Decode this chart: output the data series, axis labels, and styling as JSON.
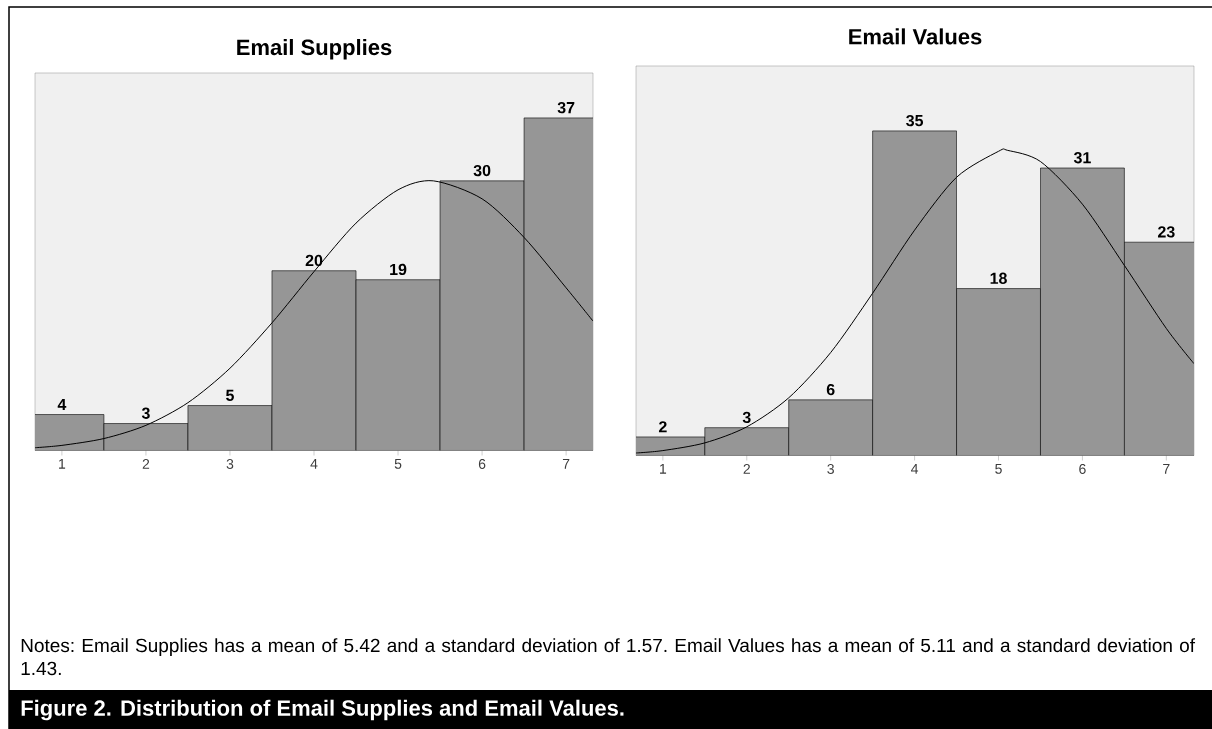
{
  "chart_data": [
    {
      "type": "histogram",
      "title": "Email Supplies",
      "bins": [
        0.5,
        1.5,
        2.5,
        3.5,
        4.5,
        5.5,
        6.5,
        7.5
      ],
      "values": [
        4,
        3,
        5,
        20,
        19,
        30,
        37
      ],
      "value_labels": [
        "4",
        "3",
        "5",
        "20",
        "19",
        "30",
        "37"
      ],
      "color": "#969696",
      "xlim": [
        0.68,
        7.32
      ],
      "xticks": [
        1,
        2,
        3,
        4,
        5,
        6,
        7
      ],
      "ylim": [
        0,
        42
      ],
      "tick_labels": "x",
      "marker": "none",
      "line_style": "solid",
      "series": [
        {
          "type": "line",
          "color": "#000000",
          "x": [
            0.68,
            1,
            1.5,
            2,
            2.5,
            3,
            3.5,
            4,
            4.5,
            5,
            5.42,
            6,
            6.5,
            7,
            7.32
          ],
          "values": [
            0.31,
            0.57,
            1.33,
            2.8,
            5.32,
            9.15,
            14.2,
            19.9,
            25.3,
            29,
            30,
            28,
            23.7,
            18.1,
            14.4
          ]
        }
      ]
    },
    {
      "type": "histogram",
      "title": "Email Values",
      "bins": [
        0.5,
        1.5,
        2.5,
        3.5,
        4.5,
        5.5,
        6.5,
        7.5
      ],
      "values": [
        2,
        3,
        6,
        35,
        18,
        31,
        23
      ],
      "value_labels": [
        "2",
        "3",
        "6",
        "35",
        "18",
        "31",
        "23"
      ],
      "color": "#969696",
      "xlim": [
        0.68,
        7.33
      ],
      "xticks": [
        1,
        2,
        3,
        4,
        5,
        6,
        7
      ],
      "ylim": [
        0,
        42
      ],
      "tick_labels": "x",
      "marker": "none",
      "line_style": "solid",
      "series": [
        {
          "type": "line",
          "color": "#000000",
          "x": [
            0.68,
            1,
            1.5,
            2,
            2.5,
            3,
            3.5,
            4,
            4.5,
            5,
            5.11,
            5.5,
            6,
            6.5,
            7,
            7.33
          ],
          "values": [
            0.27,
            0.53,
            1.36,
            3.09,
            6.22,
            11.1,
            17.5,
            24.3,
            30,
            32.8,
            32.9,
            31.7,
            27.1,
            20.5,
            13.7,
            9.9
          ]
        }
      ]
    },
    {
      "type": "other",
      "annotations": [
        "Notes: Email Supplies has a mean of 5.42 and a standard deviation of 1.57. Email Values has a mean of 5.11 and a standard deviation of 1.43.",
        "Figure 2. Distribution of Email Supplies and Email Values."
      ]
    }
  ]
}
